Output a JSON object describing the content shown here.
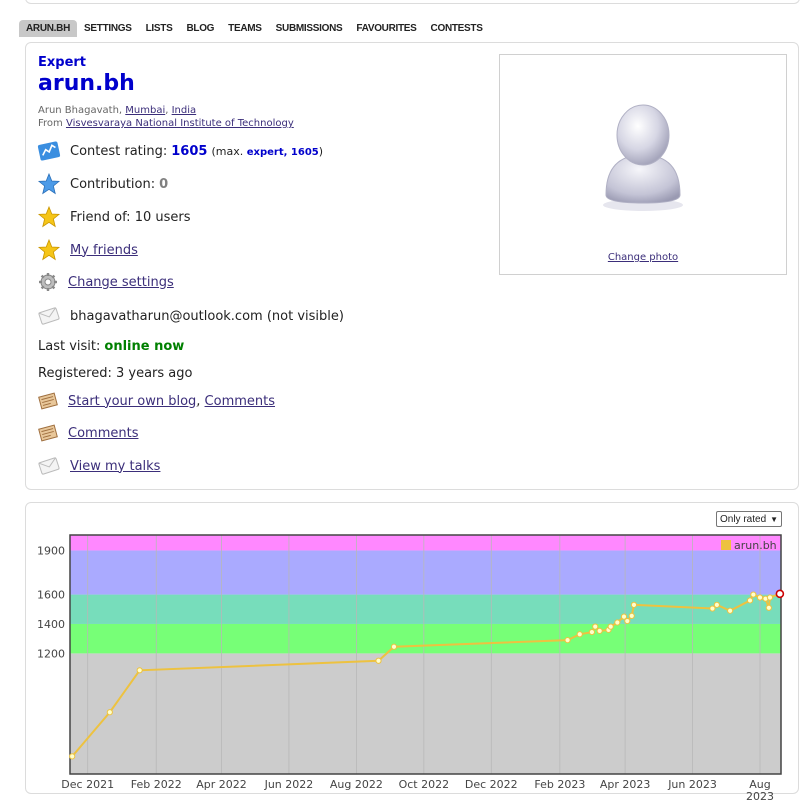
{
  "nav": {
    "tabs": [
      {
        "label": "ARUN.BH",
        "active": true
      },
      {
        "label": "SETTINGS"
      },
      {
        "label": "LISTS"
      },
      {
        "label": "BLOG"
      },
      {
        "label": "TEAMS"
      },
      {
        "label": "SUBMISSIONS"
      },
      {
        "label": "FAVOURITES"
      },
      {
        "label": "CONTESTS"
      }
    ]
  },
  "profile": {
    "rank": "Expert",
    "handle": "arun.bh",
    "name": "Arun Bhagavath,",
    "city": "Mumbai",
    "country": "India",
    "from_label": "From",
    "organization": "Visvesvaraya National Institute of Technology",
    "rating_label": "Contest rating:",
    "rating_value": "1605",
    "max_open": "(max.",
    "max_rank": "expert,",
    "max_value": "1605",
    "max_close": ")",
    "contribution_label": "Contribution:",
    "contribution_value": "0",
    "friend_of": "Friend of: 10 users",
    "my_friends": "My friends",
    "change_settings": "Change settings",
    "email": "bhagavatharun@outlook.com (not visible)",
    "last_visit_label": "Last visit:",
    "last_visit_value": "online now",
    "registered": "Registered: 3 years ago",
    "start_blog": "Start your own blog",
    "blog_comments": "Comments",
    "comments": "Comments",
    "view_talks": "View my talks",
    "change_photo": "Change photo"
  },
  "graph": {
    "filter_selected": "Only rated"
  },
  "chart_data": {
    "type": "line",
    "series": [
      {
        "name": "arun.bh",
        "color": "#edc240",
        "x": [
          "2021-11-17",
          "2021-12-21",
          "2022-01-17",
          "2022-08-21",
          "2022-09-04",
          "2023-02-08",
          "2023-02-19",
          "2023-03-02",
          "2023-03-05",
          "2023-03-09",
          "2023-03-17",
          "2023-03-19",
          "2023-03-25",
          "2023-03-31",
          "2023-04-03",
          "2023-04-07",
          "2023-04-09",
          "2023-06-19",
          "2023-06-23",
          "2023-07-05",
          "2023-07-23",
          "2023-07-26",
          "2023-08-01",
          "2023-08-06",
          "2023-08-09",
          "2023-08-10",
          "2023-08-19"
        ],
        "y": [
          500,
          800,
          1085,
          1150,
          1245,
          1290,
          1330,
          1345,
          1382,
          1353,
          1360,
          1382,
          1410,
          1450,
          1420,
          1455,
          1530,
          1505,
          1530,
          1490,
          1560,
          1600,
          1580,
          1572,
          1510,
          1580,
          1605
        ]
      }
    ],
    "x_ticks": [
      "Dec 2021",
      "Feb 2022",
      "Apr 2022",
      "Jun 2022",
      "Aug 2022",
      "Oct 2022",
      "Dec 2022",
      "Feb 2023",
      "Apr 2023",
      "Jun 2023",
      "Aug 2023"
    ],
    "y_ticks": [
      1200,
      1400,
      1600,
      1900
    ],
    "rating_bands": [
      {
        "from": 0,
        "to": 1200,
        "color": "#cccccc"
      },
      {
        "from": 1200,
        "to": 1400,
        "color": "#77ff77"
      },
      {
        "from": 1400,
        "to": 1600,
        "color": "#77ddbb"
      },
      {
        "from": 1600,
        "to": 1900,
        "color": "#aaaaff"
      },
      {
        "from": 1900,
        "to": 2100,
        "color": "#ff88ff"
      }
    ],
    "x_range": [
      "2021-11-15",
      "2023-08-20"
    ],
    "ylim": [
      380,
      2005
    ],
    "grid": true,
    "legend_position": "top-right",
    "legend_color": "#edc240"
  }
}
